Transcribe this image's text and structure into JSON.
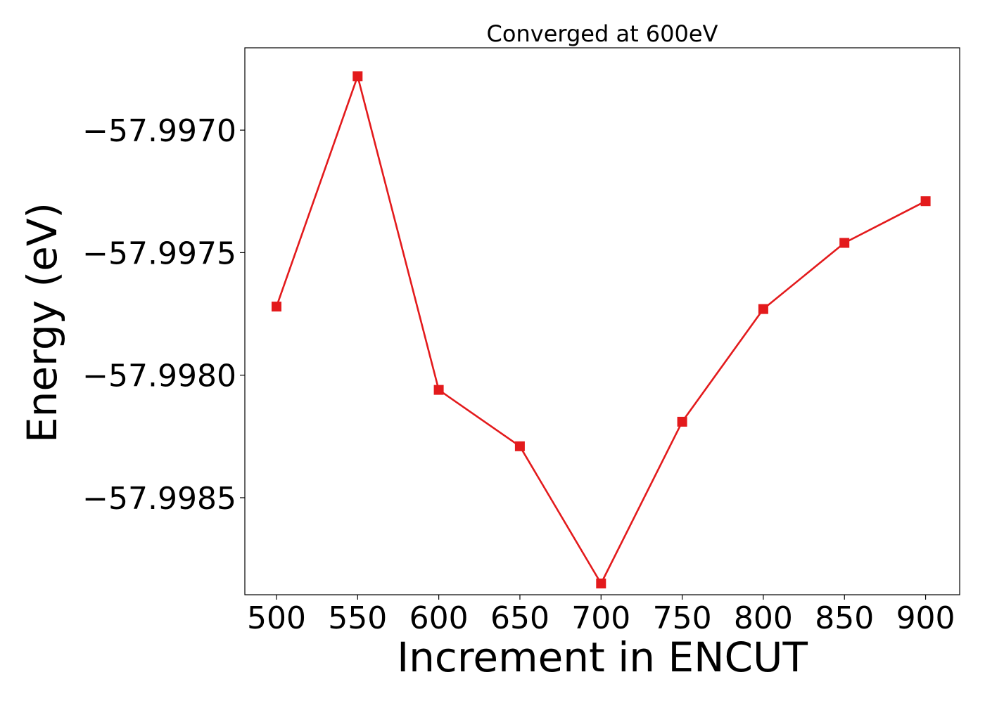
{
  "chart_data": {
    "type": "line",
    "title": "Converged at 600eV",
    "xlabel": "Increment in ENCUT",
    "ylabel": "Energy (eV)",
    "x": [
      500,
      550,
      600,
      650,
      700,
      750,
      800,
      850,
      900
    ],
    "x_tick_labels": [
      "500",
      "550",
      "600",
      "650",
      "700",
      "750",
      "800",
      "850",
      "900"
    ],
    "y_ticks": [
      -57.997,
      -57.9975,
      -57.998,
      -57.9985
    ],
    "y_tick_labels": [
      "−57.9970",
      "−57.9975",
      "−57.9980",
      "−57.9985"
    ],
    "series": [
      {
        "values": [
          -57.99772,
          -57.99678,
          -57.99806,
          -57.99829,
          -57.99885,
          -57.99819,
          -57.99773,
          -57.99746,
          -57.99729
        ],
        "marker": "square",
        "color": "#e31a1c"
      }
    ],
    "xlim": [
      480.5,
      921
    ],
    "ylim": [
      -57.998896,
      -57.996664
    ],
    "grid": false,
    "legend": "none"
  }
}
